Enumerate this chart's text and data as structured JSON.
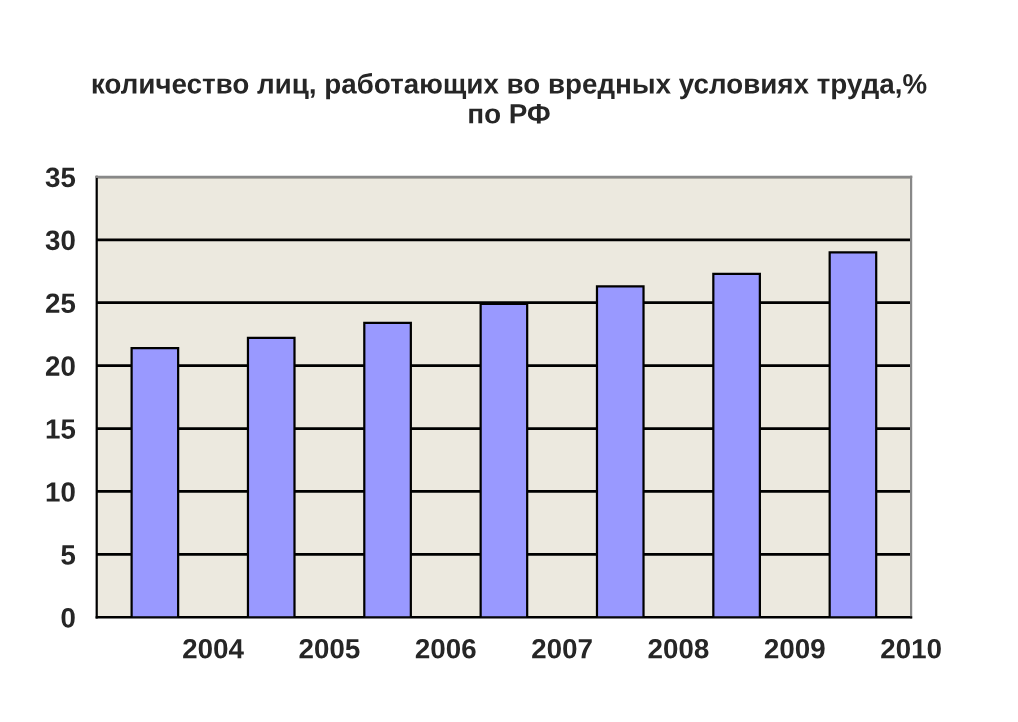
{
  "chart_data": {
    "type": "bar",
    "title": "количество лиц, работающих во вредных условиях труда,%\nпо РФ",
    "x": [
      2003.5,
      2004.5,
      2005.5,
      2006.5,
      2007.5,
      2008.5,
      2009.5
    ],
    "values": [
      21.4,
      22.2,
      23.4,
      24.9,
      26.3,
      27.3,
      29.0
    ],
    "color": "#9999ff",
    "xlim": [
      2003,
      2010
    ],
    "xticks": [
      {
        "value": 2003,
        "label": null
      },
      2004,
      2005,
      2006,
      2007,
      2008,
      2009,
      2010
    ],
    "ylim": [
      0,
      35
    ],
    "yticks": [
      0,
      5,
      10,
      15,
      20,
      25,
      30,
      35
    ],
    "grid": "y"
  }
}
